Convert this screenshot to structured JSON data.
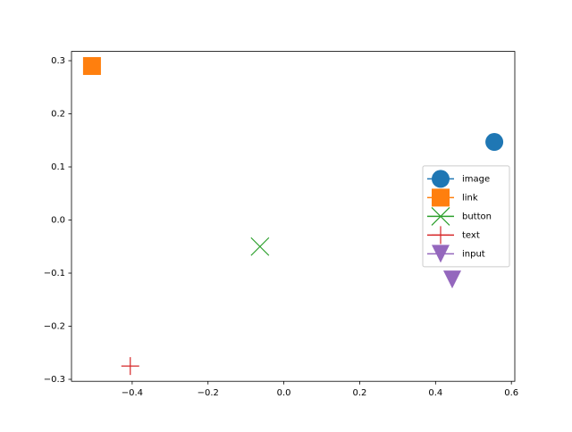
{
  "chart_data": {
    "type": "scatter",
    "series": [
      {
        "name": "image",
        "color": "#1f77b4",
        "marker": "circle",
        "x": [
          0.555
        ],
        "values": [
          0.147
        ]
      },
      {
        "name": "link",
        "color": "#ff7f0e",
        "marker": "square",
        "x": [
          -0.506
        ],
        "values": [
          0.29
        ]
      },
      {
        "name": "button",
        "color": "#2ca02c",
        "marker": "x",
        "x": [
          -0.063
        ],
        "values": [
          -0.05
        ]
      },
      {
        "name": "text",
        "color": "#d62728",
        "marker": "plus",
        "x": [
          -0.405
        ],
        "values": [
          -0.275
        ]
      },
      {
        "name": "input",
        "color": "#9467bd",
        "marker": "triangle-down",
        "x": [
          0.444
        ],
        "values": [
          -0.112
        ]
      }
    ],
    "xlim": [
      -0.56,
      0.609
    ],
    "ylim": [
      -0.3037,
      0.3175
    ],
    "xticks": [
      {
        "value": -0.4,
        "label": "−0.4"
      },
      {
        "value": -0.2,
        "label": "−0.2"
      },
      {
        "value": 0,
        "label": "0.0"
      },
      0.2,
      0.4,
      0.6
    ],
    "yticks": [
      {
        "value": -0.3,
        "label": "−0.3"
      },
      {
        "value": -0.2,
        "label": "−0.2"
      },
      {
        "value": -0.1,
        "label": "−0.1"
      },
      {
        "value": 0,
        "label": "0.0"
      },
      0.1,
      0.2,
      0.3
    ],
    "grid": false,
    "legend": "right"
  }
}
